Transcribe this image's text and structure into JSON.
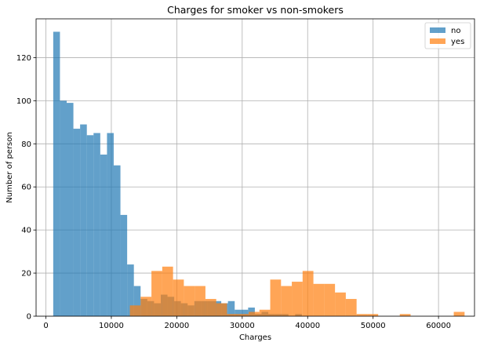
{
  "chart_data": {
    "type": "bar",
    "subtype": "histogram",
    "title": "Charges for smoker vs non-smokers",
    "xlabel": "Charges",
    "ylabel": "Number of person",
    "xlim": [
      -1500,
      65500
    ],
    "ylim": [
      0,
      138
    ],
    "xticks": [
      0,
      10000,
      20000,
      30000,
      40000,
      50000,
      60000
    ],
    "yticks": [
      0,
      20,
      40,
      60,
      80,
      100,
      120
    ],
    "grid": true,
    "legend_position": "top-right",
    "series": [
      {
        "name": "no",
        "color": "#1f77b4",
        "opacity": 0.7,
        "bin_start": 1121,
        "bin_width": 1027,
        "counts": [
          132,
          100,
          99,
          87,
          89,
          84,
          85,
          75,
          85,
          70,
          47,
          24,
          14,
          8,
          7,
          6,
          10,
          9,
          7,
          6,
          5,
          7,
          7,
          7,
          7,
          6,
          7,
          3,
          3,
          4,
          1,
          2,
          1,
          1,
          1,
          0,
          1,
          0,
          0,
          0,
          0,
          0,
          0,
          0,
          0,
          0,
          0,
          0,
          0,
          0
        ]
      },
      {
        "name": "yes",
        "color": "#ff7f0e",
        "opacity": 0.7,
        "bin_start": 12830,
        "bin_width": 1650,
        "counts": [
          5,
          9,
          21,
          23,
          17,
          14,
          14,
          8,
          6,
          1,
          1,
          2,
          3,
          17,
          14,
          16,
          21,
          15,
          15,
          11,
          8,
          1,
          1,
          0,
          0,
          1,
          0,
          0,
          0,
          0,
          2
        ]
      }
    ]
  }
}
